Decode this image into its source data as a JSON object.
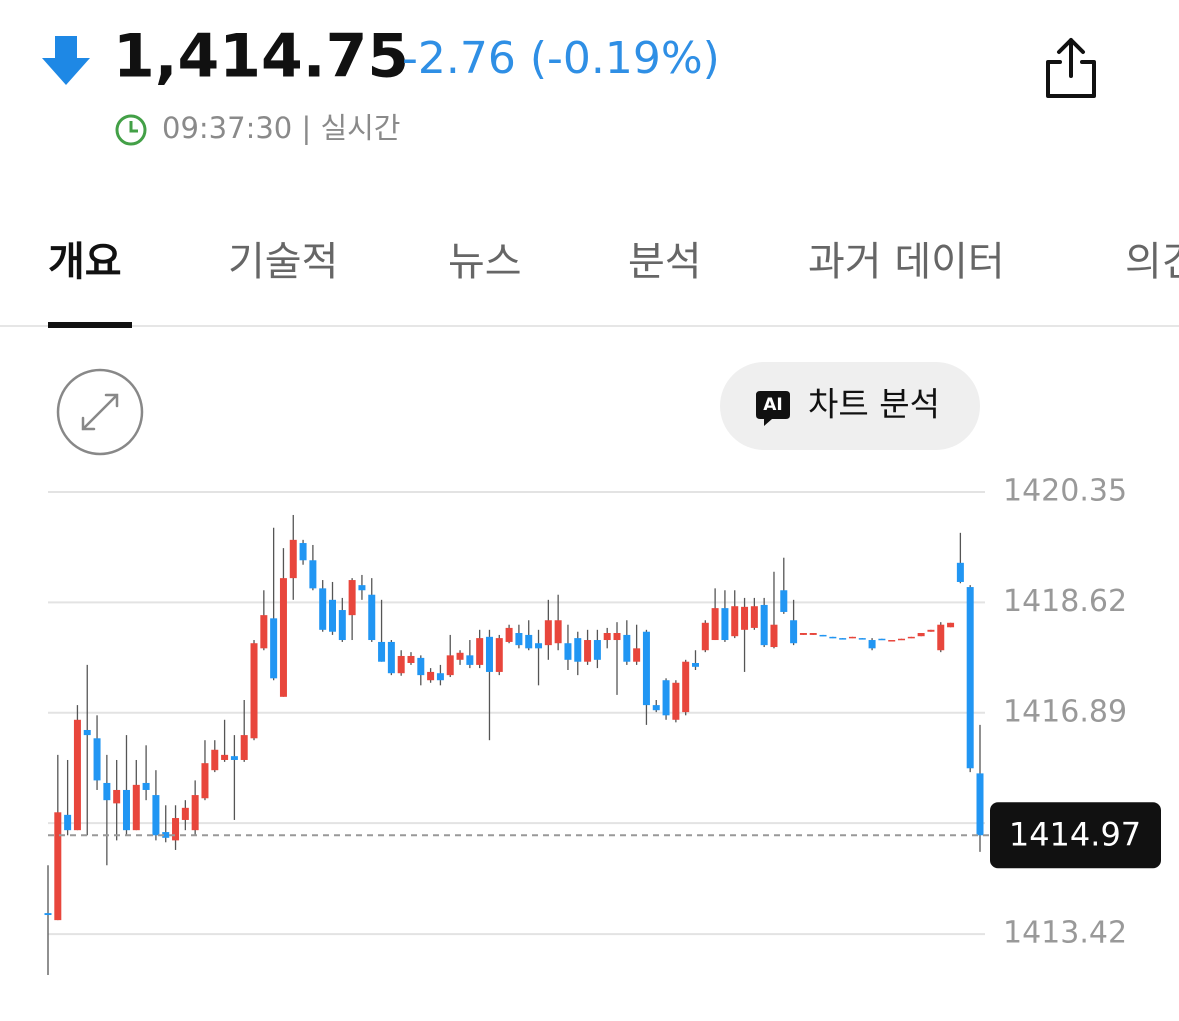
{
  "header": {
    "price": "1,414.75",
    "change": "-2.76 (-0.19%)",
    "time": "09:37:30 | 실시간"
  },
  "tabs": [
    "개요",
    "기술적",
    "뉴스",
    "분석",
    "과거 데이터",
    "의견"
  ],
  "chart_button": {
    "icon": "AI",
    "label": "차트 분석"
  },
  "chart_data": {
    "type": "candlestick",
    "up_color": "#e8463c",
    "down_color": "#2196f3",
    "grid": true,
    "ylim": [
      1412.78,
      1420.35
    ],
    "yticks": [
      1420.35,
      1418.62,
      1416.89,
      1415.16,
      1413.42
    ],
    "current_value": 1414.97,
    "open": [
      1413.75,
      1413.64,
      1415.29,
      1415.05,
      1416.62,
      1416.49,
      1415.79,
      1415.47,
      1415.68,
      1415.05,
      1415.79,
      1415.6,
      1415.02,
      1414.89,
      1415.21,
      1415.05,
      1415.55,
      1415.99,
      1416.15,
      1416.21,
      1416.15,
      1416.49,
      1417.9,
      1418.37,
      1417.14,
      1419.0,
      1419.55,
      1419.28,
      1418.84,
      1418.66,
      1418.5,
      1418.42,
      1418.89,
      1418.74,
      1418.0,
      1418.0,
      1417.51,
      1417.67,
      1417.75,
      1417.4,
      1417.51,
      1417.48,
      1417.72,
      1417.79,
      1417.64,
      1418.08,
      1417.53,
      1418.0,
      1418.14,
      1418.11,
      1417.98,
      1417.95,
      1417.98,
      1417.98,
      1418.06,
      1417.69,
      1418.03,
      1418.03,
      1418.03,
      1418.11,
      1417.69,
      1418.16,
      1417.01,
      1417.4,
      1416.78,
      1416.9,
      1417.67,
      1417.87,
      1418.03,
      1418.53,
      1418.09,
      1418.19,
      1418.22,
      1418.58,
      1417.92,
      1418.81,
      1418.34,
      1418.11,
      1418.11,
      1418.11,
      1418.08,
      1418.06,
      1418.06,
      1418.06,
      1418.03,
      1418.05,
      1418.03,
      1418.03,
      1418.06,
      1418.09,
      1418.16,
      1417.87,
      1418.23,
      1419.24,
      1418.86,
      1415.94
    ],
    "high": [
      1414.5,
      1416.23,
      1416.15,
      1417.01,
      1417.64,
      1416.85,
      1416.23,
      1416.15,
      1416.54,
      1416.15,
      1416.38,
      1415.99,
      1415.44,
      1415.44,
      1415.52,
      1415.83,
      1416.46,
      1416.46,
      1416.78,
      1416.54,
      1417.09,
      1418.03,
      1418.81,
      1419.79,
      1419.47,
      1419.99,
      1419.6,
      1419.52,
      1418.97,
      1418.94,
      1418.69,
      1419.0,
      1419.05,
      1419.0,
      1418.66,
      1418.03,
      1417.87,
      1417.84,
      1417.79,
      1417.59,
      1417.64,
      1418.11,
      1417.87,
      1418.03,
      1418.19,
      1418.19,
      1418.11,
      1418.27,
      1418.27,
      1418.34,
      1418.19,
      1418.66,
      1418.74,
      1418.27,
      1418.16,
      1418.19,
      1418.19,
      1418.22,
      1418.31,
      1418.34,
      1418.27,
      1418.19,
      1417.09,
      1417.43,
      1417.4,
      1417.72,
      1417.87,
      1418.34,
      1418.84,
      1418.81,
      1418.81,
      1418.69,
      1418.69,
      1418.69,
      1419.1,
      1419.32,
      1418.66,
      1418.14,
      1418.14,
      1418.11,
      1418.08,
      1418.06,
      1418.08,
      1418.06,
      1418.06,
      1418.05,
      1418.03,
      1418.05,
      1418.08,
      1418.14,
      1418.19,
      1418.31,
      1418.3,
      1419.71,
      1418.89,
      1416.7
    ],
    "low": [
      1412.78,
      1413.64,
      1414.97,
      1415.05,
      1414.97,
      1415.68,
      1414.5,
      1414.89,
      1414.97,
      1415.05,
      1415.52,
      1414.89,
      1414.86,
      1414.74,
      1415.05,
      1414.97,
      1415.52,
      1415.96,
      1416.12,
      1415.21,
      1416.12,
      1416.46,
      1417.87,
      1417.4,
      1417.14,
      1418.66,
      1419.21,
      1418.81,
      1418.16,
      1418.11,
      1418.0,
      1418.03,
      1418.66,
      1418.0,
      1417.69,
      1417.48,
      1417.47,
      1417.64,
      1417.32,
      1417.36,
      1417.32,
      1417.45,
      1417.64,
      1417.59,
      1417.59,
      1416.46,
      1417.48,
      1417.98,
      1417.9,
      1417.87,
      1417.32,
      1417.72,
      1417.87,
      1417.56,
      1417.48,
      1417.64,
      1417.59,
      1417.9,
      1417.17,
      1417.64,
      1417.64,
      1416.7,
      1416.9,
      1416.78,
      1416.74,
      1416.85,
      1417.56,
      1417.84,
      1418.03,
      1418.0,
      1418.06,
      1417.53,
      1418.19,
      1417.92,
      1417.9,
      1418.44,
      1417.95,
      1418.11,
      1418.11,
      1418.09,
      1418.06,
      1418.05,
      1418.06,
      1418.05,
      1417.87,
      1418.03,
      1418.03,
      1418.03,
      1418.06,
      1418.09,
      1418.16,
      1417.84,
      1418.23,
      1418.92,
      1415.96,
      1414.71
    ],
    "close": [
      1413.72,
      1415.33,
      1415.05,
      1416.78,
      1416.54,
      1415.83,
      1415.52,
      1415.68,
      1415.05,
      1415.76,
      1415.68,
      1414.97,
      1414.93,
      1415.24,
      1415.4,
      1415.6,
      1416.1,
      1416.31,
      1416.23,
      1416.15,
      1416.54,
      1417.98,
      1418.42,
      1417.43,
      1419.0,
      1419.6,
      1419.28,
      1418.84,
      1418.19,
      1418.16,
      1418.03,
      1418.97,
      1418.81,
      1418.03,
      1417.69,
      1417.51,
      1417.78,
      1417.78,
      1417.48,
      1417.53,
      1417.4,
      1417.79,
      1417.83,
      1417.64,
      1418.06,
      1417.53,
      1418.06,
      1418.22,
      1417.95,
      1417.9,
      1417.9,
      1418.34,
      1418.34,
      1417.72,
      1417.69,
      1418.03,
      1417.72,
      1418.14,
      1418.14,
      1417.69,
      1417.9,
      1417.01,
      1416.93,
      1416.85,
      1417.36,
      1417.69,
      1417.61,
      1418.3,
      1418.53,
      1418.03,
      1418.56,
      1418.55,
      1418.56,
      1417.95,
      1418.27,
      1418.47,
      1417.98,
      1418.14,
      1418.14,
      1418.09,
      1418.06,
      1418.05,
      1418.08,
      1418.05,
      1417.9,
      1418.03,
      1418.03,
      1418.05,
      1418.08,
      1418.14,
      1418.19,
      1418.27,
      1418.3,
      1418.94,
      1416.02,
      1414.97
    ]
  }
}
